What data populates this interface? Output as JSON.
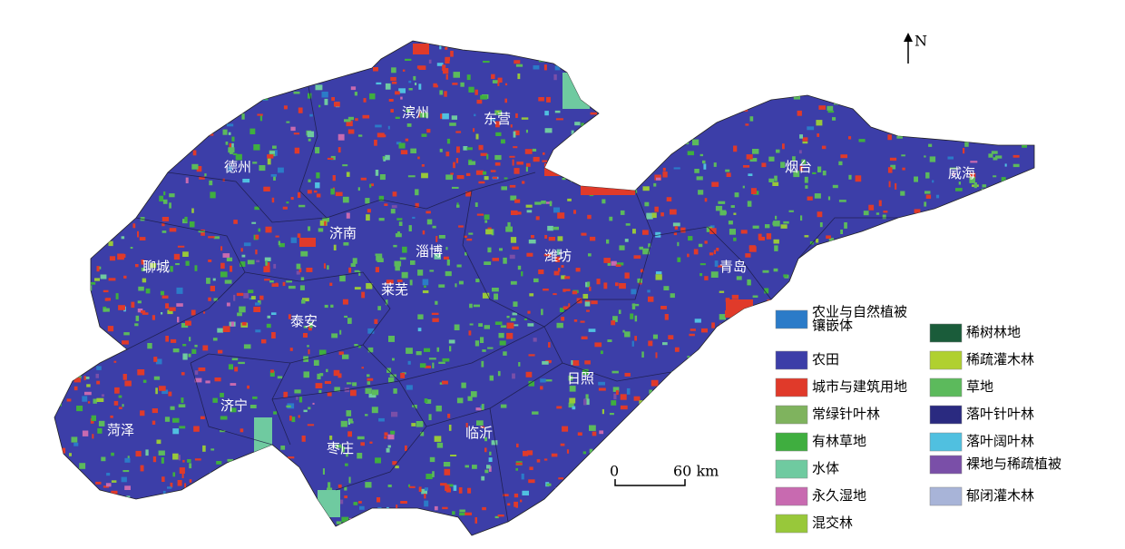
{
  "north": "N",
  "scale": {
    "start": "0",
    "end": "60 km"
  },
  "cities": [
    "滨州",
    "东营",
    "德州",
    "烟台",
    "威海",
    "济南",
    "淄博",
    "潍坊",
    "聊城",
    "青岛",
    "莱芜",
    "泰安",
    "日照",
    "济宁",
    "菏泽",
    "临沂",
    "枣庄"
  ],
  "legend": [
    {
      "lines": [
        "农业与自然植被",
        "镶嵌体"
      ],
      "color": "#2b7bc8"
    },
    {
      "lines": [
        "农田"
      ],
      "color": "#3c3ea8"
    },
    {
      "lines": [
        "城市与建筑用地"
      ],
      "color": "#e03a2a"
    },
    {
      "lines": [
        "常绿针叶林"
      ],
      "color": "#7fb35e"
    },
    {
      "lines": [
        "有林草地"
      ],
      "color": "#3fae3f"
    },
    {
      "lines": [
        "水体"
      ],
      "color": "#6fcaa0"
    },
    {
      "lines": [
        "永久湿地"
      ],
      "color": "#c86ab0"
    },
    {
      "lines": [
        "混交林"
      ],
      "color": "#98c83a"
    },
    {
      "lines": [
        "稀树林地"
      ],
      "color": "#1a5c3a"
    },
    {
      "lines": [
        "稀疏灌木林"
      ],
      "color": "#b0d030"
    },
    {
      "lines": [
        "草地"
      ],
      "color": "#5cba5c"
    },
    {
      "lines": [
        "落叶针叶林"
      ],
      "color": "#2a2a80"
    },
    {
      "lines": [
        "落叶阔叶林"
      ],
      "color": "#50c0e0"
    },
    {
      "lines": [
        "裸地与稀疏植被"
      ],
      "color": "#7a4fa8"
    },
    {
      "lines": [
        "郁闭灌木林"
      ],
      "color": "#a8b4d8"
    }
  ]
}
